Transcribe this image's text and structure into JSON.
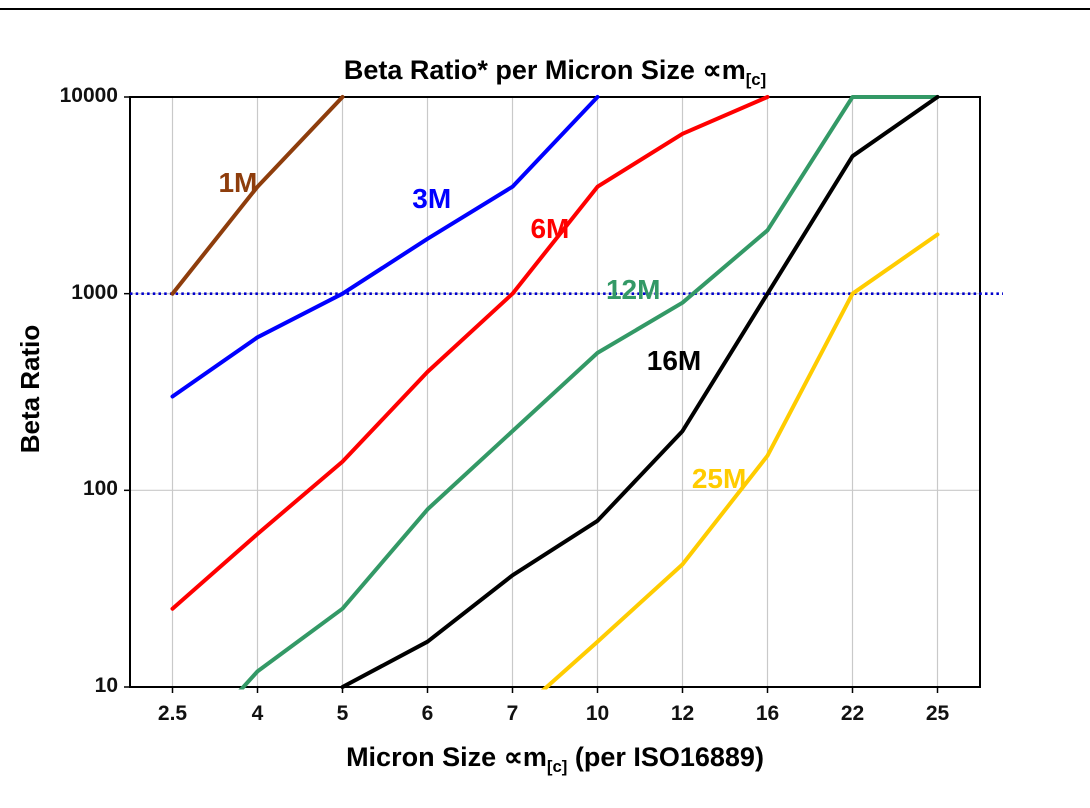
{
  "page": {
    "background": "#ffffff"
  },
  "chart_data": {
    "type": "line",
    "title": {
      "text": "Beta Ratio* per Micron Size ∝m",
      "subscript": "[c]"
    },
    "xlabel": {
      "prefix": "Micron Size ∝m",
      "subscript": "[c]",
      "suffix": " (per ISO16889)"
    },
    "ylabel": "Beta Ratio",
    "x_categories": [
      "2.5",
      "4",
      "5",
      "6",
      "7",
      "10",
      "12",
      "16",
      "22",
      "25"
    ],
    "y_scale": "log",
    "ylim": [
      10,
      10000
    ],
    "y_ticks": [
      10,
      100,
      1000,
      10000
    ],
    "y_gridlines": [
      100,
      1000
    ],
    "grid": true,
    "grid_color": "#c9c9c9",
    "axis_color": "#000000",
    "legend_position": "none",
    "reference_line": {
      "value": 1000,
      "color": "#0000cc",
      "style": "dotted"
    },
    "series": [
      {
        "name": "1M",
        "color": "#8e3d0c",
        "values": [
          1000,
          3500,
          10000,
          null,
          null,
          null,
          null,
          null,
          null,
          null
        ]
      },
      {
        "name": "3M",
        "color": "#0000ff",
        "values": [
          300,
          600,
          1000,
          1900,
          3500,
          10000,
          null,
          null,
          null,
          null
        ]
      },
      {
        "name": "6M",
        "color": "#ff0000",
        "values": [
          25,
          60,
          140,
          400,
          1000,
          3500,
          6500,
          10000,
          null,
          null
        ]
      },
      {
        "name": "12M",
        "color": "#339966",
        "values": [
          4,
          12,
          25,
          80,
          200,
          500,
          900,
          2100,
          10000,
          10000
        ]
      },
      {
        "name": "16M",
        "color": "#000000",
        "values": [
          null,
          null,
          10,
          17,
          37,
          70,
          200,
          1000,
          5000,
          10000
        ]
      },
      {
        "name": "25M",
        "color": "#ffcc00",
        "values": [
          null,
          null,
          null,
          null,
          7,
          17,
          42,
          150,
          1000,
          2000
        ]
      }
    ],
    "series_labels": [
      {
        "text": "1M",
        "color": "#8e3d0c",
        "fx": 0.127,
        "fy": 0.146
      },
      {
        "text": "3M",
        "color": "#0000ff",
        "fx": 0.355,
        "fy": 0.173
      },
      {
        "text": "6M",
        "color": "#ff0000",
        "fx": 0.494,
        "fy": 0.224
      },
      {
        "text": "12M",
        "color": "#339966",
        "fx": 0.592,
        "fy": 0.327
      },
      {
        "text": "16M",
        "color": "#000000",
        "fx": 0.64,
        "fy": 0.447
      },
      {
        "text": "25M",
        "color": "#ffcc00",
        "fx": 0.693,
        "fy": 0.647
      }
    ]
  }
}
